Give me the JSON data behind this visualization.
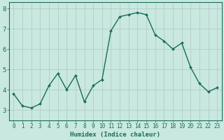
{
  "x": [
    0,
    1,
    2,
    3,
    4,
    5,
    6,
    7,
    8,
    9,
    10,
    11,
    12,
    13,
    14,
    15,
    16,
    17,
    18,
    19,
    20,
    21,
    22,
    23
  ],
  "y": [
    3.8,
    3.2,
    3.1,
    3.3,
    4.2,
    4.8,
    4.0,
    4.7,
    3.4,
    4.2,
    4.5,
    6.9,
    7.6,
    7.7,
    7.8,
    7.7,
    6.7,
    6.4,
    6.0,
    6.3,
    5.1,
    4.3,
    3.9,
    4.1
  ],
  "line_color": "#1a6b5a",
  "marker": "D",
  "marker_size": 2.0,
  "bg_color": "#c8e8e0",
  "grid_color": "#b0c8c0",
  "xlabel": "Humidex (Indice chaleur)",
  "xlim": [
    -0.5,
    23.5
  ],
  "ylim": [
    2.5,
    8.3
  ],
  "yticks": [
    3,
    4,
    5,
    6,
    7,
    8
  ],
  "xticks": [
    0,
    1,
    2,
    3,
    4,
    5,
    6,
    7,
    8,
    9,
    10,
    11,
    12,
    13,
    14,
    15,
    16,
    17,
    18,
    19,
    20,
    21,
    22,
    23
  ],
  "xtick_labels": [
    "0",
    "1",
    "2",
    "3",
    "4",
    "5",
    "6",
    "7",
    "8",
    "9",
    "10",
    "11",
    "12",
    "13",
    "14",
    "15",
    "16",
    "17",
    "18",
    "19",
    "20",
    "21",
    "22",
    "23"
  ],
  "font_color": "#1a6b5a",
  "line_width": 1.0,
  "tick_fontsize": 5.5,
  "xlabel_fontsize": 6.5,
  "ytick_fontsize": 6.5
}
